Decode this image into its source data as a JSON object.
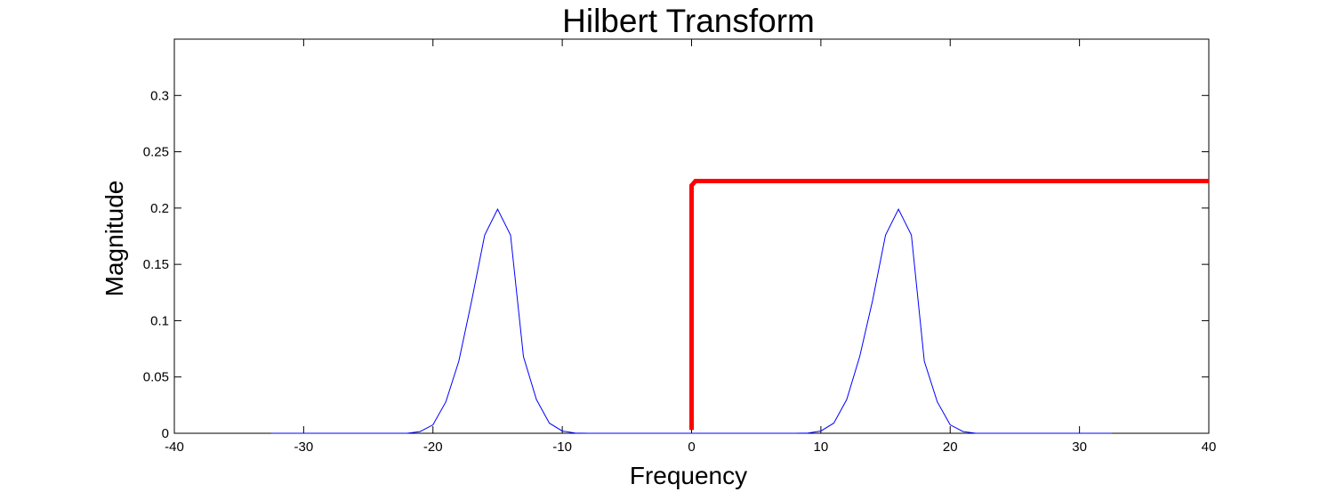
{
  "chart_data": {
    "type": "line",
    "title": "Hilbert Transform",
    "xlabel": "Frequency",
    "ylabel": "Magnitude",
    "xlim": [
      -40,
      40
    ],
    "ylim": [
      0,
      0.35
    ],
    "xticks": [
      "-40",
      "-30",
      "-20",
      "-10",
      "0",
      "10",
      "20",
      "30",
      "40"
    ],
    "xtick_values": [
      -40,
      -30,
      -20,
      -10,
      0,
      10,
      20,
      30,
      40
    ],
    "yticks": [
      "0",
      "0.05",
      "0.1",
      "0.15",
      "0.2",
      "0.25",
      "0.3"
    ],
    "ytick_values": [
      0,
      0.05,
      0.1,
      0.15,
      0.2,
      0.25,
      0.3
    ],
    "grid": false,
    "box": true,
    "series": [
      {
        "color": "#0000ff",
        "line_width": 1,
        "x": [
          -32.5,
          -22,
          -21,
          -20,
          -19,
          -18,
          -17,
          -16,
          -15,
          -14,
          -13,
          -12,
          -11,
          -10,
          -9,
          -8,
          -7,
          7,
          8,
          9,
          10,
          11,
          12,
          13,
          14,
          15,
          16,
          17,
          18,
          19,
          20,
          21,
          22,
          32.5
        ],
        "y": [
          0,
          0,
          0.0015,
          0.0075,
          0.028,
          0.064,
          0.118,
          0.176,
          0.199,
          0.176,
          0.068,
          0.03,
          0.009,
          0.002,
          0.0002,
          0,
          0,
          0,
          0,
          0.0002,
          0.002,
          0.009,
          0.03,
          0.068,
          0.118,
          0.176,
          0.199,
          0.176,
          0.064,
          0.028,
          0.0075,
          0.0015,
          0,
          0
        ]
      },
      {
        "color": "#ff0000",
        "line_width": 5,
        "x": [
          0,
          0,
          0.3,
          40
        ],
        "y": [
          0.003,
          0.22,
          0.224,
          0.224
        ]
      }
    ]
  }
}
